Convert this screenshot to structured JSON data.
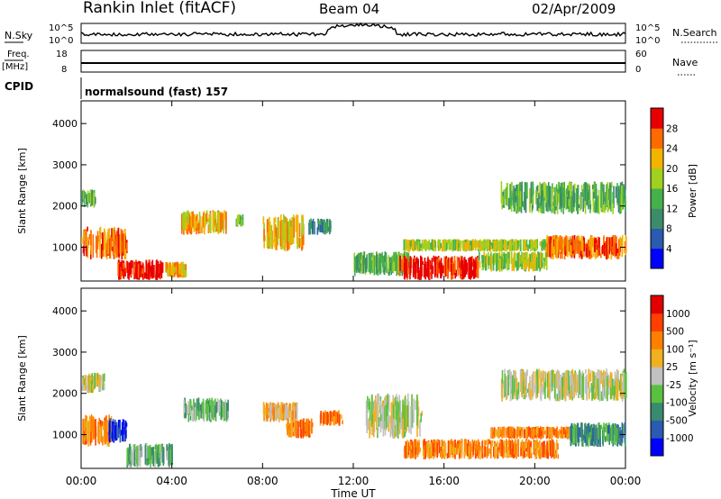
{
  "header": {
    "station": "Rankin Inlet (fitACF)",
    "beam": "Beam 04",
    "date": "02/Apr/2009"
  },
  "status_panels": {
    "nsky_label": "N.Sky",
    "nsky_ticks": [
      "10^5",
      "10^0"
    ],
    "nsearch_label": "N.Search",
    "nsearch_ticks": [
      "10^5",
      "10^0"
    ],
    "freq_label": "Freq.",
    "freq_unit": "[MHz]",
    "freq_ticks": [
      "18",
      "8"
    ],
    "nave_label": "Nave",
    "nave_ticks": [
      "60",
      "0"
    ],
    "cpid_label": "CPID",
    "cpid_value": "normalsound (fast) 157"
  },
  "colors": {
    "power_scale": [
      "#0000ff",
      "#2a5bb0",
      "#3c8c6a",
      "#46b04a",
      "#a0d020",
      "#f2b400",
      "#ff6a00",
      "#e80000"
    ],
    "velocity_scale": [
      "#0000ff",
      "#2a5bb0",
      "#3a8a70",
      "#5ac040",
      "#c0c0c0",
      "#f0b020",
      "#ff8000",
      "#ff4000",
      "#e00000"
    ]
  },
  "chart_data": [
    {
      "type": "heatmap",
      "name": "power",
      "ylabel": "Slant Range [km]",
      "xlabel": "",
      "xlim": [
        0,
        24
      ],
      "ylim": [
        180,
        4550
      ],
      "y_ticks": [
        1000,
        2000,
        3000,
        4000
      ],
      "colorbar_label": "Power [dB]",
      "colorbar_ticks": [
        "4",
        "8",
        "12",
        "16",
        "20",
        "24",
        "28"
      ],
      "regions": [
        {
          "t0": 0.0,
          "t1": 0.6,
          "r0": 1950,
          "r1": 2400,
          "level": 3
        },
        {
          "t0": 0.0,
          "t1": 2.0,
          "r0": 700,
          "r1": 1500,
          "level": 6
        },
        {
          "t0": 1.6,
          "t1": 3.6,
          "r0": 200,
          "r1": 700,
          "level": 7
        },
        {
          "t0": 3.7,
          "t1": 4.6,
          "r0": 250,
          "r1": 650,
          "level": 5
        },
        {
          "t0": 4.4,
          "t1": 6.4,
          "r0": 1300,
          "r1": 1900,
          "level": 5
        },
        {
          "t0": 6.8,
          "t1": 7.1,
          "r0": 1500,
          "r1": 1800,
          "level": 3
        },
        {
          "t0": 8.0,
          "t1": 9.8,
          "r0": 900,
          "r1": 1800,
          "level": 5
        },
        {
          "t0": 10.0,
          "t1": 11.0,
          "r0": 1300,
          "r1": 1700,
          "level": 2
        },
        {
          "t0": 12.0,
          "t1": 14.5,
          "r0": 300,
          "r1": 900,
          "level": 3
        },
        {
          "t0": 14.0,
          "t1": 17.5,
          "r0": 200,
          "r1": 800,
          "level": 7
        },
        {
          "t0": 14.2,
          "t1": 22.0,
          "r0": 900,
          "r1": 1200,
          "level": 4
        },
        {
          "t0": 17.5,
          "t1": 20.5,
          "r0": 400,
          "r1": 900,
          "level": 4
        },
        {
          "t0": 20.5,
          "t1": 24.0,
          "r0": 700,
          "r1": 1300,
          "level": 6
        },
        {
          "t0": 18.5,
          "t1": 24.0,
          "r0": 1800,
          "r1": 2600,
          "level": 3
        }
      ]
    },
    {
      "type": "heatmap",
      "name": "velocity",
      "ylabel": "Slant Range [km]",
      "xlabel": "Time UT",
      "xlim": [
        0,
        24
      ],
      "ylim": [
        180,
        4550
      ],
      "y_ticks": [
        1000,
        2000,
        3000,
        4000
      ],
      "x_ticks": [
        "00:00",
        "04:00",
        "08:00",
        "12:00",
        "16:00",
        "20:00",
        "00:00"
      ],
      "colorbar_label": "Velocity [m s⁻¹]",
      "colorbar_ticks": [
        "1000",
        "500",
        "100",
        "25",
        "-25",
        "-100",
        "-500",
        "-1000"
      ],
      "regions": [
        {
          "t0": 0.0,
          "t1": 1.0,
          "r0": 2000,
          "r1": 2500,
          "level": 4
        },
        {
          "t0": 0.0,
          "t1": 1.3,
          "r0": 700,
          "r1": 1500,
          "level": 6
        },
        {
          "t0": 1.2,
          "t1": 2.0,
          "r0": 800,
          "r1": 1400,
          "level": 0
        },
        {
          "t0": 2.0,
          "t1": 4.0,
          "r0": 200,
          "r1": 800,
          "level": 3
        },
        {
          "t0": 4.5,
          "t1": 6.5,
          "r0": 1300,
          "r1": 1900,
          "level": 3
        },
        {
          "t0": 8.0,
          "t1": 9.5,
          "r0": 1300,
          "r1": 1800,
          "level": 5
        },
        {
          "t0": 9.0,
          "t1": 10.2,
          "r0": 900,
          "r1": 1400,
          "level": 6
        },
        {
          "t0": 10.5,
          "t1": 11.5,
          "r0": 1200,
          "r1": 1600,
          "level": 6
        },
        {
          "t0": 12.5,
          "t1": 15.0,
          "r0": 900,
          "r1": 2000,
          "level": 4
        },
        {
          "t0": 14.2,
          "t1": 21.0,
          "r0": 400,
          "r1": 900,
          "level": 6
        },
        {
          "t0": 18.0,
          "t1": 21.5,
          "r0": 900,
          "r1": 1200,
          "level": 6
        },
        {
          "t0": 21.5,
          "t1": 24.0,
          "r0": 700,
          "r1": 1300,
          "level": 2
        },
        {
          "t0": 18.5,
          "t1": 24.0,
          "r0": 1800,
          "r1": 2600,
          "level": 4
        }
      ]
    }
  ]
}
